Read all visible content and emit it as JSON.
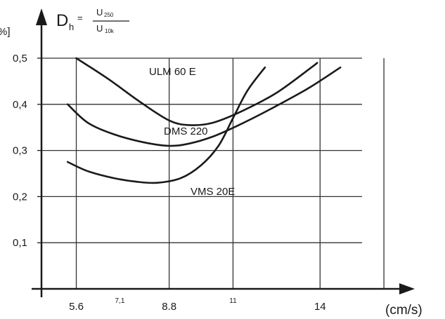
{
  "chart_data": {
    "type": "line",
    "x": [],
    "ylim": [
      0,
      0.5
    ],
    "xlim": [
      4.4,
      16.9
    ],
    "grid": true,
    "y_ticks": [
      {
        "value": 0.1,
        "label": "0,1"
      },
      {
        "value": 0.2,
        "label": "0,2"
      },
      {
        "value": 0.3,
        "label": "0,3"
      },
      {
        "value": 0.4,
        "label": "0,4"
      },
      {
        "value": 0.5,
        "label": "0,5"
      }
    ],
    "x_ticks": [
      {
        "value": 5.6,
        "label": "5.6",
        "size": "large"
      },
      {
        "value": 7.1,
        "label": "7,1",
        "size": "small"
      },
      {
        "value": 8.8,
        "label": "8.8",
        "size": "large"
      },
      {
        "value": 11,
        "label": "11",
        "size": "small"
      },
      {
        "value": 14,
        "label": "14",
        "size": "large"
      }
    ],
    "x_gridlines": [
      5.6,
      8.8,
      11,
      14,
      16.2
    ],
    "y_unit_label": "%]",
    "x_unit_label": "(cm/s)",
    "formula": {
      "lhs": "D",
      "lhs_sub": "h",
      "equals": "=",
      "numerator": "U",
      "numerator_sub": "250",
      "denominator": "U",
      "denominator_sub": "10k"
    },
    "series": [
      {
        "name": "ULM 60 E",
        "points": [
          [
            5.6,
            0.5
          ],
          [
            6.7,
            0.455
          ],
          [
            7.8,
            0.405
          ],
          [
            8.8,
            0.365
          ],
          [
            9.5,
            0.355
          ],
          [
            10.3,
            0.36
          ],
          [
            11.3,
            0.385
          ],
          [
            12.5,
            0.425
          ],
          [
            13.7,
            0.48
          ],
          [
            13.9,
            0.49
          ]
        ]
      },
      {
        "name": "DMS 220",
        "points": [
          [
            5.3,
            0.4
          ],
          [
            6.0,
            0.36
          ],
          [
            6.9,
            0.335
          ],
          [
            7.9,
            0.318
          ],
          [
            8.8,
            0.31
          ],
          [
            9.5,
            0.315
          ],
          [
            10.3,
            0.33
          ],
          [
            11.2,
            0.355
          ],
          [
            12.3,
            0.39
          ],
          [
            13.6,
            0.435
          ],
          [
            14.7,
            0.48
          ]
        ]
      },
      {
        "name": "VMS 20E",
        "points": [
          [
            5.3,
            0.275
          ],
          [
            6.0,
            0.255
          ],
          [
            6.9,
            0.24
          ],
          [
            7.7,
            0.232
          ],
          [
            8.4,
            0.23
          ],
          [
            9.2,
            0.24
          ],
          [
            9.9,
            0.268
          ],
          [
            10.5,
            0.31
          ],
          [
            11.0,
            0.37
          ],
          [
            11.5,
            0.43
          ],
          [
            12.1,
            0.48
          ]
        ]
      }
    ]
  }
}
